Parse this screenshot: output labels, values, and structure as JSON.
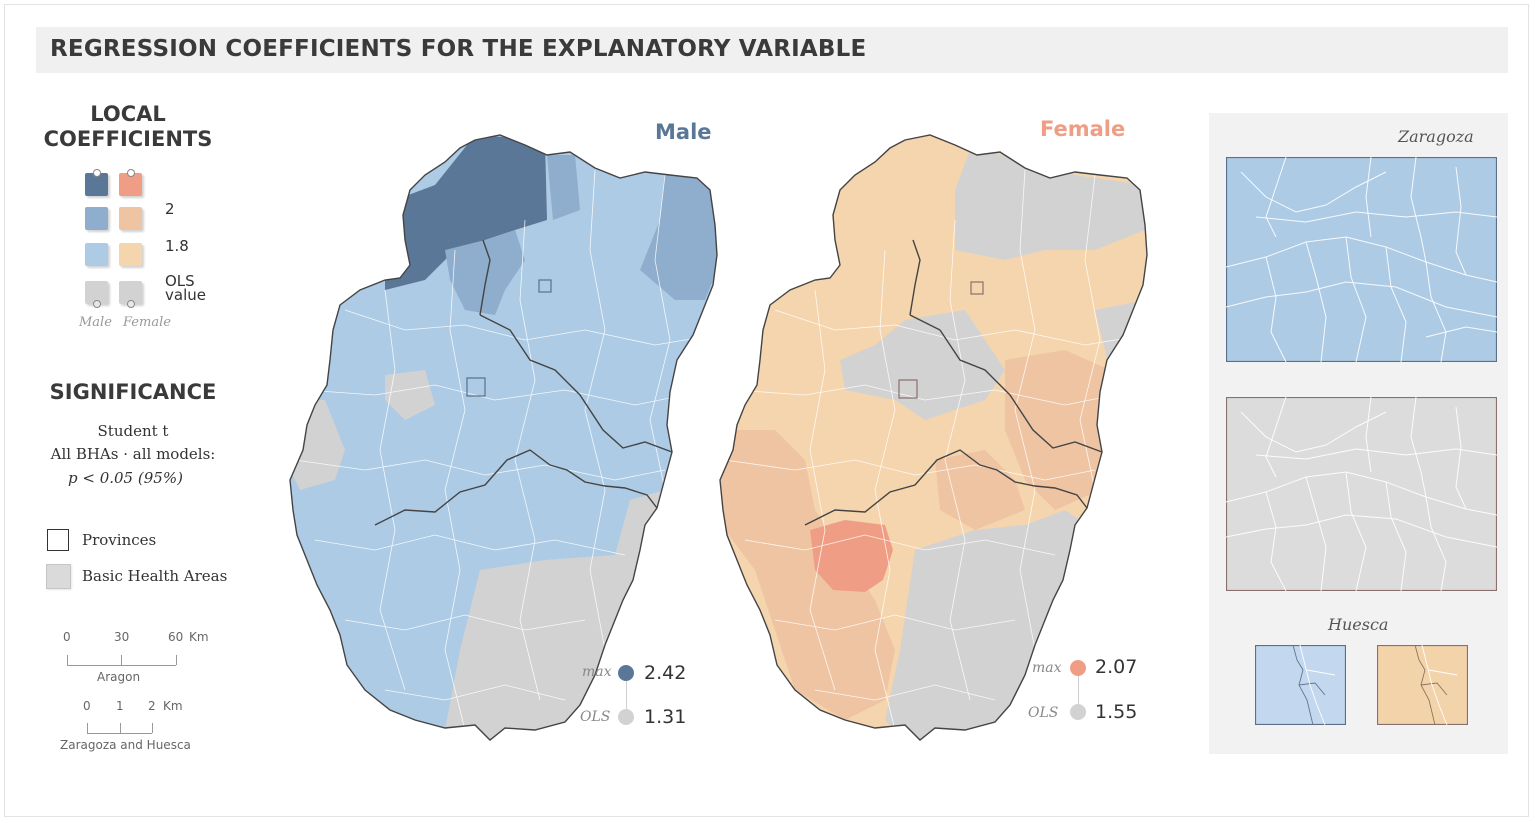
{
  "title": "REGRESSION COEFFICIENTS FOR THE EXPLANATORY VARIABLE",
  "legend": {
    "local_heading_1": "LOCAL",
    "local_heading_2": "COEFFICIENTS",
    "threshold_2": "2",
    "threshold_18": "1.8",
    "ols_1": "OLS",
    "ols_2": "value",
    "male": "Male",
    "female": "Female",
    "colors": {
      "male_dark": "#5b7798",
      "male_mid": "#8fadcc",
      "male_light": "#adcbe5",
      "female_dark": "#ef9e85",
      "female_mid": "#efc4a3",
      "female_light": "#f5d5ad",
      "ols_grey": "#d2d2d2"
    }
  },
  "significance": {
    "heading": "SIGNIFICANCE",
    "line1": "Student t",
    "line2": "All BHAs · all models:",
    "line3_p": "p < 0.05",
    "line3_pct": "(95%)",
    "provinces": "Provinces",
    "bha": "Basic Health Areas"
  },
  "scale_aragon": {
    "ticks": [
      "0",
      "30",
      "60"
    ],
    "unit": "Km",
    "label": "Aragon"
  },
  "scale_zh": {
    "ticks": [
      "0",
      "1",
      "2"
    ],
    "unit": "Km",
    "label": "Zaragoza and Huesca"
  },
  "maps": {
    "male": {
      "title": "Male",
      "max_label": "max",
      "max_value": "2.42",
      "ols_label": "OLS",
      "ols_value": "1.31",
      "color": "#5b7798",
      "dot_max": "#5b7798"
    },
    "female": {
      "title": "Female",
      "max_label": "max",
      "max_value": "2.07",
      "ols_label": "OLS",
      "ols_value": "1.55",
      "color": "#ef9e85",
      "dot_max": "#ef9e85"
    }
  },
  "insets": {
    "zaragoza": "Zaragoza",
    "huesca": "Huesca"
  }
}
